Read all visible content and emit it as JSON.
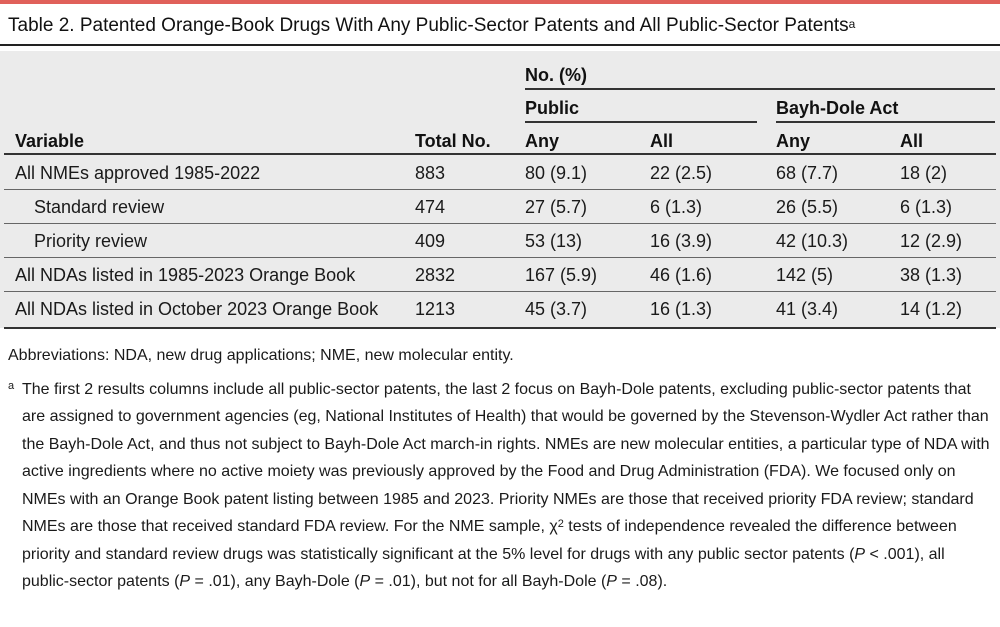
{
  "title": "Table 2. Patented Orange-Book Drugs With Any Public-Sector Patents and All Public-Sector Patents",
  "title_mark": "a",
  "header": {
    "group": "No. (%)",
    "public": "Public",
    "bayh_dole": "Bayh-Dole Act",
    "variable": "Variable",
    "total": "Total No.",
    "any1": "Any",
    "all1": "All",
    "any2": "Any",
    "all2": "All"
  },
  "rows": [
    {
      "variable": "All NMEs approved 1985-2022",
      "total": "883",
      "pub_any": "80 (9.1)",
      "pub_all": "22 (2.5)",
      "bd_any": "68 (7.7)",
      "bd_all": "18 (2)"
    },
    {
      "variable": "Standard review",
      "total": "474",
      "pub_any": "27 (5.7)",
      "pub_all": "6 (1.3)",
      "bd_any": "26 (5.5)",
      "bd_all": "6 (1.3)"
    },
    {
      "variable": "Priority review",
      "total": "409",
      "pub_any": "53 (13)",
      "pub_all": "16 (3.9)",
      "bd_any": "42 (10.3)",
      "bd_all": "12 (2.9)"
    },
    {
      "variable": "All NDAs listed in 1985-2023 Orange Book",
      "total": "2832",
      "pub_any": "167 (5.9)",
      "pub_all": "46 (1.6)",
      "bd_any": "142 (5)",
      "bd_all": "38 (1.3)"
    },
    {
      "variable": "All NDAs listed in October 2023 Orange Book",
      "total": "1213",
      "pub_any": "45 (3.7)",
      "pub_all": "16 (1.3)",
      "bd_any": "41 (3.4)",
      "bd_all": "14 (1.2)"
    }
  ],
  "abbreviations": "Abbreviations: NDA, new drug applications; NME, new molecular entity.",
  "footnote": {
    "mark": "a",
    "part1": "The first 2 results columns include all public-sector patents, the last 2 focus on Bayh-Dole patents, excluding public-sector patents that are assigned to government agencies (eg, National Institutes of Health) that would be governed by the Stevenson-Wydler Act rather than the Bayh-Dole Act, and thus not subject to Bayh-Dole Act march-in rights. NMEs are new molecular entities, a particular type of NDA with active ingredients where no active moiety was previously approved by the Food and Drug Administration (FDA). We focused only on NMEs with an Orange Book patent listing between 1985 and 2023. Priority NMEs are those that received priority FDA review; standard NMEs are those that received standard FDA review. For the NME sample, χ",
    "chi_sup": "2",
    "part2": " tests of independence revealed the difference between priority and standard review drugs was statistically significant at the 5% level for drugs with any public sector patents (",
    "p_letter": "P",
    "p1": " < .001), all public-sector patents (",
    "p2": " = .01), any Bayh-Dole (",
    "p3": " = .01), but not for all Bayh-Dole (",
    "p4": " = .08)."
  },
  "colors": {
    "accent": "#e0605a",
    "table_bg": "#ebebeb"
  }
}
